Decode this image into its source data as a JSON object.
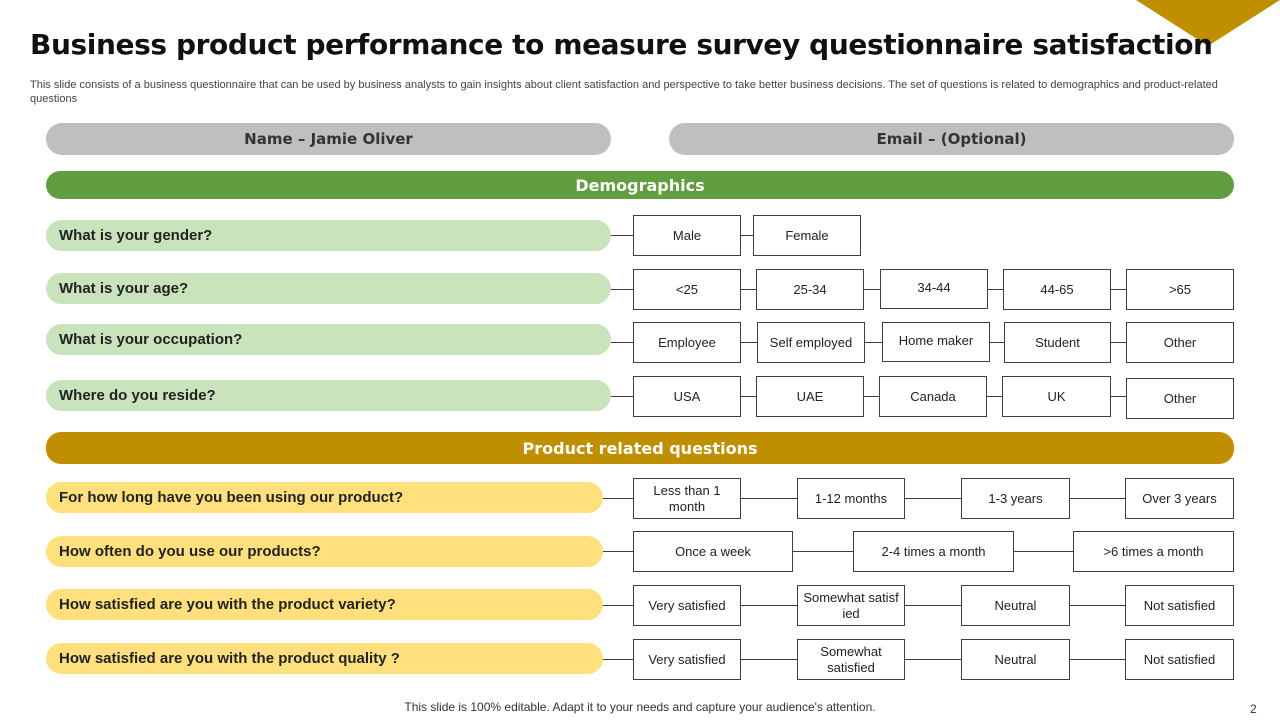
{
  "title": "Business product performance to measure survey questionnaire satisfaction",
  "subtitle": "This slide consists of a business questionnaire that can be used by business analysts to gain insights about client satisfaction and perspective to take better business decisions. The set of questions is related to demographics and product-related questions",
  "header_fields": {
    "name": "Name – Jamie Oliver",
    "email": "Email – (Optional)"
  },
  "sections": {
    "demographics": "Demographics",
    "product": "Product related questions"
  },
  "demographics": [
    {
      "question": "What is your gender?",
      "options": [
        "Male",
        "Female"
      ]
    },
    {
      "question": "What is your age?",
      "options": [
        "<25",
        "25-34",
        "34-44",
        "44-65",
        ">65"
      ]
    },
    {
      "question": "What is your occupation?",
      "options": [
        "Employee",
        "Self employed",
        "Home maker",
        "Student",
        "Other"
      ]
    },
    {
      "question": "Where do you reside?",
      "options": [
        "USA",
        "UAE",
        "Canada",
        "UK",
        "Other"
      ]
    }
  ],
  "product": [
    {
      "question": "For how long have you been using our product?",
      "options": [
        "Less than 1 month",
        "1-12 months",
        "1-3 years",
        "Over 3 years"
      ]
    },
    {
      "question": "How often do you use our products?",
      "options": [
        "Once a week",
        "2-4 times a month",
        ">6 times a month"
      ]
    },
    {
      "question": "How satisfied are you with the product variety?",
      "options": [
        "Very satisfied",
        "Somewhat satisfied",
        "Neutral",
        "Not satisfied"
      ]
    },
    {
      "question": "How satisfied are you with the product quality ?",
      "options": [
        "Very satisfied",
        "Somewhat satisfied",
        "Neutral",
        "Not satisfied"
      ]
    }
  ],
  "footer": "This slide is 100% editable. Adapt it to your needs and capture your audience's attention.",
  "page_number": "2",
  "colors": {
    "green": "#629D3F",
    "light_green": "#C9E3BC",
    "gold": "#BF8F00",
    "light_yellow": "#FFE07C",
    "gray": "#BFBFBF"
  }
}
